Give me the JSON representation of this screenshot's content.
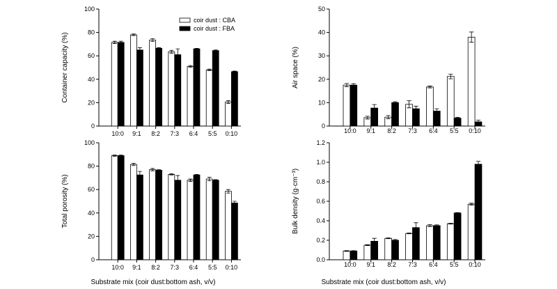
{
  "figure": {
    "xlabel_left": "Substrate mix (coir dust:bottom ash, v/v)",
    "xlabel_right": "Substrate mix (coir dust:bottom ash, v/v)"
  },
  "legend": {
    "cba": "coir dust : CBA",
    "fba": "coir dust : FBA"
  },
  "colors": {
    "cba": "#ffffff",
    "fba": "#000000",
    "edge": "#000000"
  },
  "chart_data": [
    {
      "id": "container-capacity",
      "type": "bar",
      "title": "",
      "xlabel": "",
      "ylabel": "Container capacity (%)",
      "ylim": [
        0,
        100
      ],
      "yticks": [
        0,
        20,
        40,
        60,
        80,
        100
      ],
      "ytick_labels": [
        "0",
        "20",
        "40",
        "60",
        "80",
        "100"
      ],
      "categories": [
        "10:0",
        "9:1",
        "8:2",
        "7:3",
        "6:4",
        "5:5",
        "0:10"
      ],
      "series": [
        {
          "name": "coir dust : CBA",
          "values": [
            71.5,
            78,
            73.5,
            63.5,
            51,
            48,
            20.5
          ],
          "errors": [
            1,
            0.7,
            1.2,
            1.2,
            0.7,
            0.7,
            1.2
          ]
        },
        {
          "name": "coir dust : FBA",
          "values": [
            71.5,
            65,
            66.5,
            61,
            66,
            64.5,
            46.5
          ],
          "errors": [
            1,
            2,
            0.5,
            5,
            0.4,
            0.5,
            0.5
          ]
        }
      ]
    },
    {
      "id": "air-space",
      "type": "bar",
      "title": "",
      "xlabel": "",
      "ylabel": "Air space (%)",
      "ylim": [
        0,
        50
      ],
      "yticks": [
        0,
        10,
        20,
        30,
        40,
        50
      ],
      "ytick_labels": [
        "0",
        "10",
        "20",
        "30",
        "40",
        "50"
      ],
      "categories": [
        "10:0",
        "9:1",
        "8:2",
        "7:3",
        "6:4",
        "5:5",
        "0:10"
      ],
      "series": [
        {
          "name": "coir dust : CBA",
          "values": [
            17.5,
            3.6,
            3.8,
            9.3,
            16.7,
            21.2,
            38
          ],
          "errors": [
            0.7,
            0.6,
            0.7,
            1.5,
            0.4,
            1,
            2.2
          ]
        },
        {
          "name": "coir dust : FBA",
          "values": [
            17.5,
            7.7,
            10,
            7.4,
            6.4,
            3.4,
            1.8
          ],
          "errors": [
            0.6,
            1.5,
            0.4,
            1.1,
            1,
            0.3,
            0.7
          ]
        }
      ]
    },
    {
      "id": "total-porosity",
      "type": "bar",
      "title": "",
      "xlabel": "",
      "ylabel": "Total porosity (%)",
      "ylim": [
        0,
        100
      ],
      "yticks": [
        0,
        20,
        40,
        60,
        80,
        100
      ],
      "ytick_labels": [
        "0",
        "20",
        "40",
        "60",
        "80",
        "100"
      ],
      "categories": [
        "10:0",
        "9:1",
        "8:2",
        "7:3",
        "6:4",
        "5:5",
        "0:10"
      ],
      "series": [
        {
          "name": "coir dust : CBA",
          "values": [
            89,
            81.5,
            77,
            73,
            68,
            69,
            58.5
          ],
          "errors": [
            0.5,
            1,
            1,
            0.5,
            1,
            1.5,
            1.5
          ]
        },
        {
          "name": "coir dust : FBA",
          "values": [
            89,
            72.5,
            76.5,
            68,
            72.5,
            68,
            48.5
          ],
          "errors": [
            0.5,
            3,
            0.5,
            4,
            0.5,
            0.5,
            1.5
          ]
        }
      ]
    },
    {
      "id": "bulk-density",
      "type": "bar",
      "title": "",
      "xlabel": "",
      "ylabel": "Bulk density (g·cm⁻³)",
      "ylim": [
        0,
        1.2
      ],
      "yticks": [
        0,
        0.2,
        0.4,
        0.6,
        0.8,
        1.0,
        1.2
      ],
      "ytick_labels": [
        "0.0",
        "0.2",
        "0.4",
        "0.6",
        "0.8",
        "1.0",
        "1.2"
      ],
      "categories": [
        "10:0",
        "9:1",
        "8:2",
        "7:3",
        "6:4",
        "5:5",
        "0:10"
      ],
      "series": [
        {
          "name": "coir dust : CBA",
          "values": [
            0.09,
            0.15,
            0.22,
            0.27,
            0.35,
            0.37,
            0.57
          ],
          "errors": [
            0.004,
            0.004,
            0.004,
            0.004,
            0.01,
            0.004,
            0.01
          ]
        },
        {
          "name": "coir dust : FBA",
          "values": [
            0.09,
            0.19,
            0.2,
            0.33,
            0.35,
            0.48,
            0.98
          ],
          "errors": [
            0.004,
            0.03,
            0.008,
            0.05,
            0.008,
            0.004,
            0.03
          ]
        }
      ]
    }
  ]
}
